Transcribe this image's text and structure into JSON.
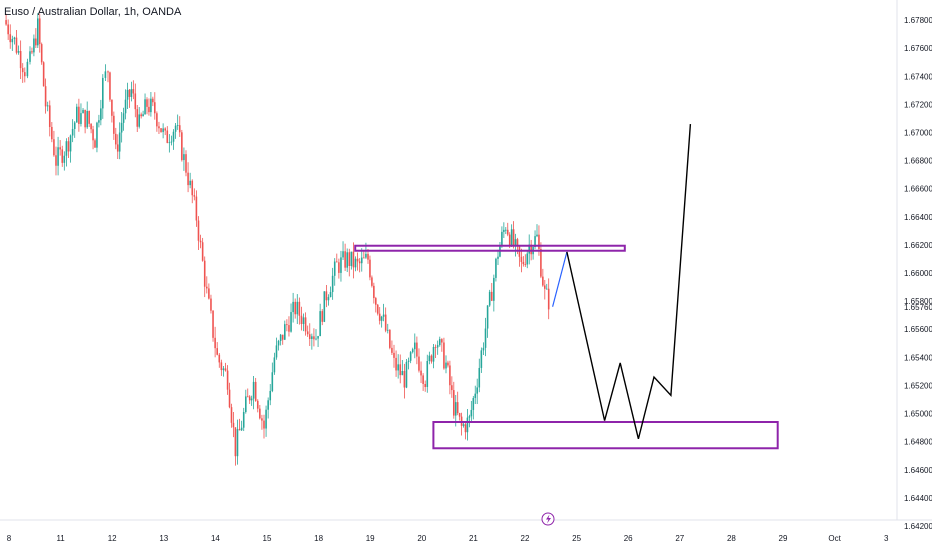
{
  "header": {
    "title": "Euso / Australian Dollar, 1h, OANDA"
  },
  "colors": {
    "up": "#26a69a",
    "down": "#ef5350",
    "zone": "#8e24aa",
    "projection": "#000000",
    "recent": "#2962ff"
  },
  "chart_data": {
    "type": "candlestick",
    "title": "Euso / Australian Dollar, 1h, OANDA",
    "ylim": [
      1.642,
      1.679
    ],
    "price_ticks": [
      "1.67800",
      "1.67600",
      "1.67400",
      "1.67200",
      "1.67000",
      "1.66800",
      "1.66600",
      "1.66400",
      "1.66200",
      "1.66000",
      "1.65800",
      "1.65600",
      "1.65400",
      "1.65200",
      "1.65000",
      "1.64800",
      "1.64600",
      "1.64400",
      "1.64200"
    ],
    "last_price_label": "1.65760",
    "date_ticks": [
      "8",
      "11",
      "12",
      "13",
      "14",
      "15",
      "18",
      "19",
      "20",
      "21",
      "22",
      "25",
      "26",
      "27",
      "28",
      "29",
      "Oct",
      "3"
    ],
    "candle_path": [
      [
        0,
        1.678
      ],
      [
        0.4,
        1.6765
      ],
      [
        0.8,
        1.6745
      ],
      [
        1.0,
        1.675
      ],
      [
        1.3,
        1.6775
      ],
      [
        1.6,
        1.672
      ],
      [
        2.0,
        1.668
      ],
      [
        2.4,
        1.669
      ],
      [
        2.8,
        1.6712
      ],
      [
        3.2,
        1.671
      ],
      [
        3.5,
        1.6695
      ],
      [
        3.8,
        1.6735
      ],
      [
        4.0,
        1.6745
      ],
      [
        4.3,
        1.6685
      ],
      [
        4.6,
        1.6715
      ],
      [
        4.9,
        1.673
      ],
      [
        5.2,
        1.6705
      ],
      [
        5.5,
        1.672
      ],
      [
        5.8,
        1.6715
      ],
      [
        6.2,
        1.6695
      ],
      [
        6.6,
        1.6705
      ],
      [
        7.0,
        1.6675
      ],
      [
        7.4,
        1.664
      ],
      [
        7.8,
        1.6585
      ],
      [
        8.2,
        1.654
      ],
      [
        8.6,
        1.6525
      ],
      [
        8.9,
        1.6475
      ],
      [
        9.3,
        1.6505
      ],
      [
        9.6,
        1.6522
      ],
      [
        10.0,
        1.649
      ],
      [
        10.4,
        1.654
      ],
      [
        10.8,
        1.656
      ],
      [
        11.2,
        1.6575
      ],
      [
        11.6,
        1.6565
      ],
      [
        12.0,
        1.6555
      ],
      [
        12.4,
        1.6585
      ],
      [
        12.8,
        1.6605
      ],
      [
        13.2,
        1.661
      ],
      [
        13.6,
        1.6605
      ],
      [
        14.0,
        1.661
      ],
      [
        14.3,
        1.658
      ],
      [
        14.6,
        1.6565
      ],
      [
        15.0,
        1.6535
      ],
      [
        15.4,
        1.6525
      ],
      [
        15.8,
        1.6545
      ],
      [
        16.2,
        1.6525
      ],
      [
        16.6,
        1.6555
      ],
      [
        17.0,
        1.6535
      ],
      [
        17.3,
        1.6505
      ],
      [
        17.6,
        1.649
      ],
      [
        17.9,
        1.6495
      ],
      [
        18.2,
        1.6525
      ],
      [
        18.6,
        1.657
      ],
      [
        19.0,
        1.6615
      ],
      [
        19.3,
        1.6635
      ],
      [
        19.6,
        1.662
      ],
      [
        19.9,
        1.6605
      ],
      [
        20.2,
        1.662
      ],
      [
        20.5,
        1.6625
      ],
      [
        20.8,
        1.6585
      ],
      [
        21.1,
        1.6576
      ]
    ],
    "supply_zone": {
      "x_range": [
        16.2,
        20.8
      ],
      "y_range": [
        1.6613,
        1.6618
      ]
    },
    "demand_zone": {
      "x_range": [
        17.4,
        22.95
      ],
      "y_range": [
        1.6481,
        1.6494
      ]
    },
    "projection_path": [
      [
        21.1,
        1.6576
      ],
      [
        21.65,
        1.6615
      ],
      [
        23.1,
        1.6495
      ],
      [
        23.7,
        1.6536
      ],
      [
        24.4,
        1.6482
      ],
      [
        25.0,
        1.6526
      ],
      [
        25.65,
        1.6513
      ],
      [
        26.4,
        1.6706
      ]
    ]
  }
}
